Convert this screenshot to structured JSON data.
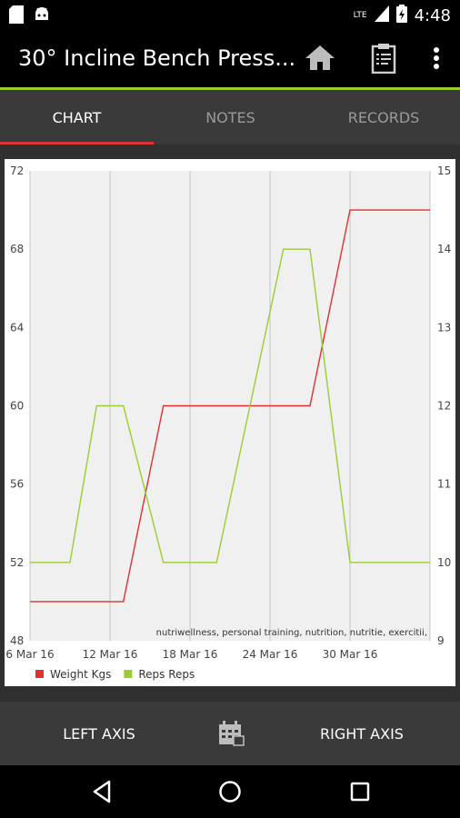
{
  "status_bar": {
    "time": "4:48",
    "network": "LTE"
  },
  "app_bar": {
    "title": "30° Incline Bench Press...",
    "icons": [
      "home-icon",
      "clipboard-icon",
      "more-vert-icon"
    ]
  },
  "tabs": [
    {
      "label": "CHART",
      "active": true
    },
    {
      "label": "NOTES",
      "active": false
    },
    {
      "label": "RECORDS",
      "active": false
    }
  ],
  "bottom_bar": {
    "left_axis_label": "LEFT AXIS",
    "right_axis_label": "RIGHT AXIS",
    "calendar_icon": "calendar-icon"
  },
  "colors": {
    "accent": "#9acd32",
    "tab_indicator": "#dd3333",
    "weight_series": "#e03030",
    "reps_series": "#9acd32"
  },
  "chart_data": {
    "type": "line",
    "title": "",
    "watermark": "nutriwellness, personal training, nutrition, nutritie, exercitii,",
    "x_ticks": [
      "6 Mar 16",
      "12 Mar 16",
      "18 Mar 16",
      "24 Mar 16",
      "30 Mar 16"
    ],
    "x_domain": [
      "6 Mar 16",
      "5 Apr 16"
    ],
    "y_left": {
      "ticks": [
        48,
        52,
        56,
        60,
        64,
        68,
        72
      ],
      "ylim": [
        48,
        72
      ]
    },
    "y_right": {
      "ticks": [
        9,
        10,
        11,
        12,
        13,
        14,
        15
      ],
      "ylim": [
        9,
        15
      ]
    },
    "grid": true,
    "legend_position": "bottom-left",
    "series": [
      {
        "name": "Weight Kgs",
        "axis": "left",
        "points": [
          [
            "6 Mar 16",
            50
          ],
          [
            "13 Mar 16",
            50
          ],
          [
            "16 Mar 16",
            60
          ],
          [
            "27 Mar 16",
            60
          ],
          [
            "30 Mar 16",
            70
          ],
          [
            "5 Apr 16",
            70
          ]
        ]
      },
      {
        "name": "Reps Reps",
        "axis": "right",
        "points": [
          [
            "6 Mar 16",
            10
          ],
          [
            "9 Mar 16",
            10
          ],
          [
            "11 Mar 16",
            12
          ],
          [
            "13 Mar 16",
            12
          ],
          [
            "16 Mar 16",
            10
          ],
          [
            "20 Mar 16",
            10
          ],
          [
            "25 Mar 16",
            14
          ],
          [
            "27 Mar 16",
            14
          ],
          [
            "30 Mar 16",
            10
          ],
          [
            "5 Apr 16",
            10
          ]
        ]
      }
    ]
  }
}
